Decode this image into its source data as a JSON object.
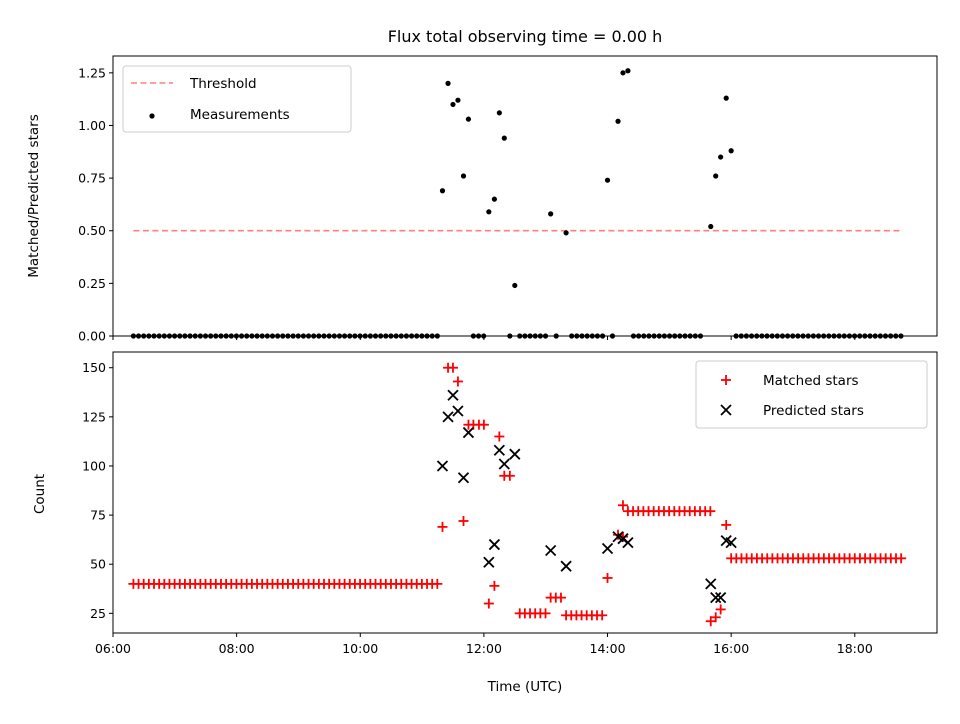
{
  "chart_data": [
    {
      "type": "scatter",
      "panel": "top",
      "title": "Flux total observing time = 0.00 h",
      "ylabel": "Matched/Predicted stars",
      "xlabel": "",
      "ylim": [
        0,
        1.33
      ],
      "yticks": [
        "0.00",
        "0.25",
        "0.50",
        "0.75",
        "1.00",
        "1.25"
      ],
      "legend_position": "top-left",
      "legend": [
        {
          "label": "Threshold",
          "color": "#ff7f7f",
          "style": "dashed-line"
        },
        {
          "label": "Measurements",
          "color": "#000000",
          "style": "dot"
        }
      ],
      "series": [
        {
          "name": "Threshold",
          "type": "line",
          "color": "#ff7f7f",
          "x": [
            6.33,
            18.78
          ],
          "y": [
            0.5,
            0.5
          ]
        },
        {
          "name": "Measurements",
          "type": "scatter",
          "color": "#000000",
          "x": [
            11.33,
            11.42,
            11.5,
            11.58,
            11.67,
            11.75,
            12.08,
            12.17,
            12.25,
            12.33,
            12.5,
            13.08,
            13.33,
            14.0,
            14.17,
            14.25,
            14.33,
            15.67,
            15.75,
            15.83,
            15.92,
            16.0
          ],
          "y": [
            0.69,
            1.2,
            1.1,
            1.12,
            0.76,
            1.03,
            0.59,
            0.65,
            1.06,
            0.94,
            0.24,
            0.58,
            0.49,
            0.74,
            1.02,
            1.25,
            1.26,
            0.52,
            0.76,
            0.85,
            1.13,
            0.88
          ]
        },
        {
          "name": "Measurements (zero)",
          "type": "scatter",
          "color": "#000000",
          "zero_ranges": [
            [
              6.33,
              11.25
            ],
            [
              11.83,
              12.0
            ],
            [
              12.42,
              12.42
            ],
            [
              12.58,
              13.0
            ],
            [
              13.17,
              13.25
            ],
            [
              13.42,
              13.92
            ],
            [
              14.08,
              14.08
            ],
            [
              14.42,
              15.58
            ],
            [
              16.08,
              18.75
            ]
          ],
          "y": 0
        }
      ]
    },
    {
      "type": "scatter",
      "panel": "bottom",
      "title": "",
      "ylabel": "Count",
      "xlabel": "Time (UTC)",
      "ylim": [
        15,
        158
      ],
      "xlim": [
        6.0,
        19.33
      ],
      "yticks": [
        "25",
        "50",
        "75",
        "100",
        "125",
        "150"
      ],
      "xticks": [
        "06:00",
        "08:00",
        "10:00",
        "12:00",
        "14:00",
        "16:00",
        "18:00"
      ],
      "legend_position": "top-right",
      "legend": [
        {
          "label": "Matched stars",
          "color": "#ff0000",
          "marker": "+"
        },
        {
          "label": "Predicted stars",
          "color": "#000000",
          "marker": "x"
        }
      ],
      "series": [
        {
          "name": "Matched stars",
          "color": "#ff0000",
          "segments": [
            {
              "x_from": 6.33,
              "x_to": 11.25,
              "y": 40
            },
            {
              "x_from": 12.58,
              "x_to": 13.0,
              "y": 25
            },
            {
              "x_from": 13.08,
              "x_to": 13.25,
              "y": 33
            },
            {
              "x_from": 13.33,
              "x_to": 13.92,
              "y": 24
            },
            {
              "x_from": 14.0,
              "x_to": 14.08,
              "y": 43
            },
            {
              "x_from": 14.25,
              "x_to": 14.33,
              "y": 80
            },
            {
              "x_from": 14.33,
              "x_to": 15.67,
              "y": 77
            },
            {
              "x_from": 16.0,
              "x_to": 18.75,
              "y": 53
            }
          ],
          "points": {
            "x": [
              11.33,
              11.42,
              11.5,
              11.58,
              11.67,
              11.75,
              11.83,
              11.92,
              12.0,
              12.08,
              12.17,
              12.25,
              12.33,
              12.42,
              14.17,
              14.25,
              15.67,
              15.75,
              15.83,
              15.92
            ],
            "y": [
              69,
              150,
              150,
              143,
              72,
              121,
              121,
              121,
              121,
              30,
              39,
              115,
              95,
              95,
              65,
              64,
              21,
              23,
              27,
              70
            ]
          }
        },
        {
          "name": "Predicted stars",
          "color": "#000000",
          "x": [
            11.33,
            11.42,
            11.5,
            11.58,
            11.67,
            11.75,
            12.08,
            12.17,
            12.25,
            12.33,
            12.5,
            13.08,
            13.33,
            14.0,
            14.17,
            14.25,
            14.33,
            15.67,
            15.75,
            15.83,
            15.92,
            16.0
          ],
          "y": [
            100,
            125,
            136,
            128,
            94,
            117,
            51,
            60,
            108,
            101,
            106,
            57,
            49,
            58,
            64,
            63,
            61,
            40,
            33,
            33,
            62,
            61
          ]
        }
      ]
    }
  ]
}
